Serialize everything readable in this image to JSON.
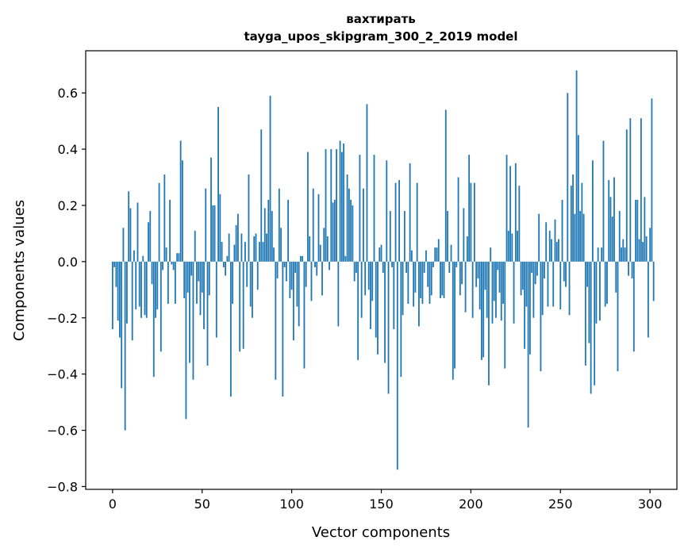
{
  "chart_data": {
    "type": "bar",
    "title_line1": "вахтирать",
    "title_line2": "tayga_upos_skipgram_300_2_2019 model",
    "xlabel": "Vector components",
    "ylabel": "Components values",
    "xlim": [
      -15,
      315
    ],
    "ylim": [
      -0.81,
      0.75
    ],
    "x_ticks": [
      0,
      50,
      100,
      150,
      200,
      250,
      300
    ],
    "y_ticks": [
      -0.8,
      -0.6,
      -0.4,
      -0.2,
      0.0,
      0.2,
      0.4,
      0.6
    ],
    "y_tick_labels": [
      "−0.8",
      "−0.6",
      "−0.4",
      "−0.2",
      "0.0",
      "0.2",
      "0.4",
      "0.6"
    ],
    "bar_color": "#1f77b4",
    "values": [
      -0.24,
      -0.02,
      -0.09,
      -0.21,
      -0.27,
      -0.45,
      0.12,
      -0.6,
      -0.22,
      0.25,
      0.19,
      -0.28,
      0.04,
      -0.17,
      0.21,
      -0.16,
      -0.2,
      0.02,
      -0.19,
      -0.2,
      0.14,
      0.18,
      -0.08,
      -0.41,
      -0.2,
      -0.17,
      0.28,
      -0.32,
      -0.03,
      0.31,
      0.05,
      -0.15,
      0.22,
      -0.01,
      -0.03,
      -0.15,
      0.03,
      0.03,
      0.43,
      0.36,
      -0.13,
      -0.56,
      -0.11,
      -0.36,
      -0.05,
      -0.42,
      0.11,
      -0.15,
      -0.07,
      -0.19,
      -0.11,
      -0.24,
      0.26,
      -0.37,
      -0.12,
      0.37,
      0.2,
      0.2,
      -0.27,
      0.55,
      0.24,
      0.07,
      -0.02,
      -0.05,
      0.02,
      0.1,
      -0.48,
      -0.15,
      0.06,
      0.13,
      0.17,
      -0.32,
      0.1,
      -0.31,
      0.07,
      -0.09,
      0.31,
      -0.16,
      -0.2,
      0.09,
      0.1,
      -0.1,
      0.07,
      0.47,
      0.07,
      0.19,
      0.1,
      0.22,
      0.59,
      0.18,
      0.05,
      -0.42,
      -0.06,
      0.26,
      0.12,
      -0.48,
      -0.02,
      -0.07,
      0.22,
      -0.13,
      -0.1,
      -0.28,
      -0.04,
      -0.16,
      -0.23,
      0.02,
      0.02,
      -0.38,
      -0.09,
      0.39,
      0.09,
      -0.14,
      0.26,
      -0.02,
      -0.05,
      0.24,
      0.06,
      -0.12,
      0.12,
      0.4,
      0.09,
      -0.03,
      0.4,
      0.21,
      0.22,
      0.4,
      -0.23,
      0.43,
      0.39,
      0.42,
      0.02,
      0.31,
      0.26,
      0.22,
      0.2,
      -0.07,
      -0.04,
      -0.35,
      0.38,
      -0.2,
      0.26,
      -0.12,
      0.56,
      -0.1,
      -0.24,
      -0.14,
      0.38,
      -0.27,
      -0.33,
      0.05,
      0.06,
      -0.04,
      -0.36,
      0.36,
      -0.47,
      0.18,
      -0.02,
      -0.24,
      0.28,
      -0.74,
      0.29,
      -0.41,
      -0.19,
      0.18,
      -0.04,
      -0.15,
      0.35,
      0.04,
      -0.16,
      -0.11,
      0.28,
      -0.23,
      -0.13,
      -0.15,
      -0.04,
      0.04,
      -0.09,
      -0.15,
      -0.12,
      -0.02,
      0.05,
      0.05,
      0.08,
      -0.13,
      -0.12,
      -0.13,
      0.54,
      0.18,
      -0.04,
      0.06,
      -0.42,
      -0.38,
      -0.02,
      0.3,
      -0.12,
      -0.08,
      0.19,
      -0.18,
      0.09,
      0.38,
      0.28,
      -0.2,
      0.28,
      -0.09,
      -0.06,
      -0.17,
      -0.35,
      -0.34,
      -0.1,
      -0.2,
      -0.44,
      0.05,
      -0.22,
      -0.14,
      -0.2,
      -0.03,
      -0.11,
      -0.21,
      -0.15,
      -0.38,
      0.38,
      0.11,
      0.34,
      0.1,
      -0.22,
      0.35,
      0.11,
      0.27,
      -0.12,
      -0.1,
      -0.31,
      -0.16,
      -0.59,
      -0.33,
      -0.04,
      -0.2,
      -0.08,
      -0.05,
      0.17,
      -0.39,
      -0.19,
      -0.06,
      0.14,
      -0.16,
      0.11,
      0.08,
      -0.16,
      0.15,
      0.07,
      0.08,
      -0.17,
      0.22,
      -0.07,
      -0.09,
      0.6,
      -0.19,
      0.27,
      0.31,
      0.17,
      0.68,
      0.45,
      0.18,
      0.28,
      0.17,
      -0.37,
      -0.09,
      -0.29,
      -0.47,
      0.36,
      -0.44,
      -0.22,
      0.05,
      -0.21,
      0.05,
      0.43,
      -0.16,
      -0.15,
      0.29,
      0.23,
      0.16,
      0.3,
      -0.11,
      -0.39,
      0.18,
      0.05,
      0.08,
      0.05,
      0.47,
      -0.05,
      0.51,
      -0.06,
      -0.32,
      0.22,
      0.22,
      0.08,
      0.51,
      0.07,
      0.23,
      0.09,
      -0.27,
      0.12,
      0.58,
      -0.14
    ]
  }
}
